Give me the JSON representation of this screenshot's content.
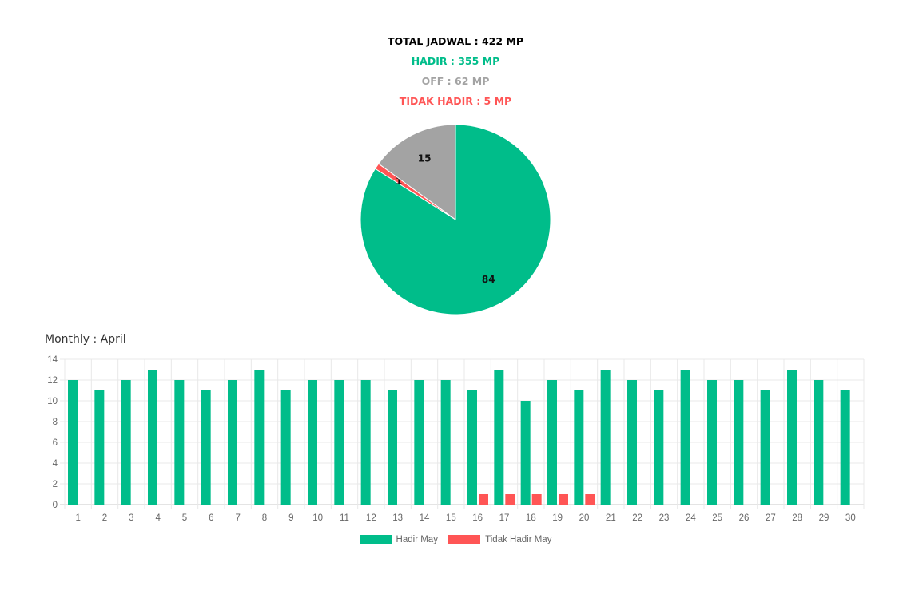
{
  "summary": {
    "total": "TOTAL JADWAL : 422 MP",
    "hadir": "HADIR : 355 MP",
    "off": "OFF : 62 MP",
    "tidak_hadir": "TIDAK HADIR : 5 MP"
  },
  "monthly_title": "Monthly : April",
  "colors": {
    "hadir": "#00bd8a",
    "tidak_hadir": "#ff5555",
    "off": "#a3a3a3"
  },
  "chart_data": [
    {
      "type": "pie",
      "slices": [
        {
          "label": "84",
          "value": 84,
          "color": "#00bd8a"
        },
        {
          "label": "1",
          "value": 1,
          "color": "#ff5555"
        },
        {
          "label": "15",
          "value": 15,
          "color": "#a3a3a3"
        }
      ]
    },
    {
      "type": "bar",
      "categories": [
        "1",
        "2",
        "3",
        "4",
        "5",
        "6",
        "7",
        "8",
        "9",
        "10",
        "11",
        "12",
        "13",
        "14",
        "15",
        "16",
        "17",
        "18",
        "19",
        "20",
        "21",
        "22",
        "23",
        "24",
        "25",
        "26",
        "27",
        "28",
        "29",
        "30"
      ],
      "series": [
        {
          "name": "Hadir May",
          "color": "#00bd8a",
          "values": [
            12,
            11,
            12,
            13,
            12,
            11,
            12,
            13,
            11,
            12,
            12,
            12,
            11,
            12,
            12,
            11,
            13,
            10,
            12,
            11,
            13,
            12,
            11,
            13,
            12,
            12,
            11,
            13,
            12,
            11
          ]
        },
        {
          "name": "Tidak Hadir May",
          "color": "#ff5555",
          "values": [
            0,
            0,
            0,
            0,
            0,
            0,
            0,
            0,
            0,
            0,
            0,
            0,
            0,
            0,
            0,
            1,
            1,
            1,
            1,
            1,
            0,
            0,
            0,
            0,
            0,
            0,
            0,
            0,
            0,
            0
          ]
        }
      ],
      "ylim": [
        0,
        14
      ],
      "yticks": [
        "0",
        "2",
        "4",
        "6",
        "8",
        "10",
        "12",
        "14"
      ],
      "grid": true,
      "legend": "bottom"
    }
  ]
}
